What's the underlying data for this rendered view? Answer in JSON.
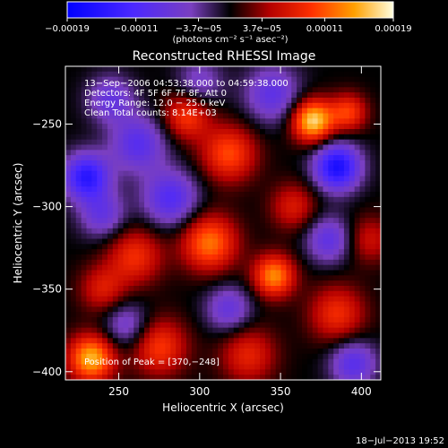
{
  "chart_data": {
    "type": "heatmap",
    "title": "Reconstructed RHESSI Image",
    "xlabel": "Heliocentric X (arcsec)",
    "ylabel": "Heliocentric Y (arcsec)",
    "xlim": [
      217,
      412
    ],
    "ylim": [
      -405,
      -215
    ],
    "xticks": [
      250,
      300,
      350,
      400
    ],
    "xtick_labels": [
      "250",
      "300",
      "350",
      "400"
    ],
    "yticks": [
      -250,
      -300,
      -350,
      -400
    ],
    "ytick_labels": [
      "−250",
      "−300",
      "−350",
      "−400"
    ],
    "colorbar": {
      "range": [
        -0.00019,
        0.00019
      ],
      "ticks": [
        -0.00019,
        -0.00011,
        -3.7e-05,
        3.7e-05,
        0.00011,
        0.00019
      ],
      "tick_labels": [
        "−0.00019",
        "−0.00011",
        "−3.7e−05",
        "3.7e−05",
        "0.00011",
        "0.00019"
      ],
      "unit_label": "(photons cm⁻² s⁻¹ asec⁻²)"
    },
    "info_lines": [
      "13−Sep−2006 04:53:38.000 to 04:59:38.000",
      "Detectors: 4F 5F 6F 7F 8F, Att 0",
      "Energy Range: 12.0 − 25.0 keV",
      "Clean    Total counts: 8.14E+03"
    ],
    "peak_label": "Position of Peak = [370,−248]",
    "peak": {
      "x": 370,
      "y": -248
    },
    "sources": [
      {
        "x": 370,
        "y": -248,
        "amp": 1.0,
        "sigma": 9
      },
      {
        "x": 233,
        "y": -392,
        "amp": 0.9,
        "sigma": 10
      },
      {
        "x": 346,
        "y": -342,
        "amp": 0.78,
        "sigma": 9
      },
      {
        "x": 306,
        "y": -322,
        "amp": 0.72,
        "sigma": 12
      },
      {
        "x": 392,
        "y": -243,
        "amp": 0.55,
        "sigma": 8
      },
      {
        "x": 318,
        "y": -268,
        "amp": 0.6,
        "sigma": 12
      },
      {
        "x": 292,
        "y": -245,
        "amp": 0.55,
        "sigma": 10
      },
      {
        "x": 260,
        "y": -330,
        "amp": 0.5,
        "sigma": 12
      },
      {
        "x": 385,
        "y": -365,
        "amp": 0.5,
        "sigma": 12
      },
      {
        "x": 275,
        "y": -385,
        "amp": 0.55,
        "sigma": 12
      },
      {
        "x": 330,
        "y": -390,
        "amp": 0.45,
        "sigma": 12
      },
      {
        "x": 358,
        "y": -300,
        "amp": 0.4,
        "sigma": 10
      },
      {
        "x": 240,
        "y": -350,
        "amp": 0.4,
        "sigma": 10
      },
      {
        "x": 405,
        "y": -320,
        "amp": 0.35,
        "sigma": 10
      },
      {
        "x": 230,
        "y": -282,
        "amp": -0.85,
        "sigma": 10
      },
      {
        "x": 385,
        "y": -276,
        "amp": -0.95,
        "sigma": 10
      },
      {
        "x": 262,
        "y": -262,
        "amp": -0.55,
        "sigma": 12
      },
      {
        "x": 345,
        "y": -232,
        "amp": -0.5,
        "sigma": 12
      },
      {
        "x": 245,
        "y": -235,
        "amp": -0.45,
        "sigma": 10
      },
      {
        "x": 282,
        "y": -295,
        "amp": -0.6,
        "sigma": 12
      },
      {
        "x": 318,
        "y": -362,
        "amp": -0.45,
        "sigma": 10
      },
      {
        "x": 395,
        "y": -395,
        "amp": -0.55,
        "sigma": 10
      },
      {
        "x": 255,
        "y": -372,
        "amp": -0.4,
        "sigma": 10
      },
      {
        "x": 380,
        "y": -320,
        "amp": -0.5,
        "sigma": 10
      },
      {
        "x": 240,
        "y": -305,
        "amp": -0.45,
        "sigma": 10
      },
      {
        "x": 300,
        "y": -225,
        "amp": -0.35,
        "sigma": 10
      }
    ]
  },
  "timestamp": "18−Jul−2013 19:52"
}
